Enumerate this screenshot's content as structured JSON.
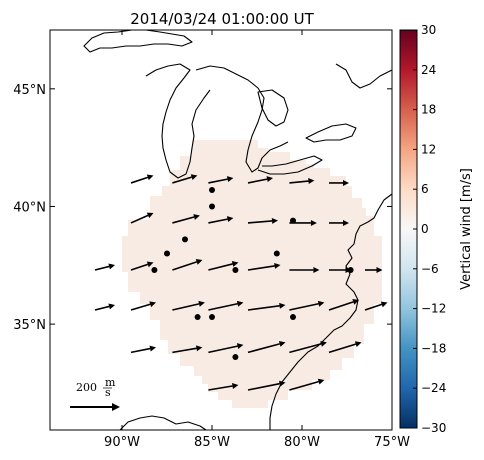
{
  "title": "2014/03/24 01:00:00 UT",
  "x_ticks": [
    "90°W",
    "85°W",
    "80°W",
    "75°W"
  ],
  "y_ticks": [
    "45°N",
    "40°N",
    "35°N"
  ],
  "colorbar": {
    "label": "Vertical wind [m/s]",
    "ticks": [
      "30",
      "24",
      "18",
      "12",
      "6",
      "0",
      "−6",
      "−12",
      "−18",
      "−24",
      "−30"
    ],
    "vmin": -30,
    "vmax": 30,
    "colormap": "RdBu_r",
    "colors": [
      "#053061",
      "#2166ac",
      "#4393c3",
      "#92c5de",
      "#d1e5f0",
      "#f7f7f7",
      "#fddbc7",
      "#f4a582",
      "#d6604d",
      "#b2182b",
      "#67001f"
    ]
  },
  "reference_arrow": {
    "value": 200,
    "label_num": "200",
    "label_unit_top": "m",
    "label_unit_bottom": "s"
  },
  "chart_data": {
    "type": "quiver-map",
    "field": "Vertical wind",
    "units": "m/s",
    "shaded_field_value": 2,
    "shaded_color": "#f8ebe4",
    "extent": {
      "lon": [
        -94,
        -75
      ],
      "lat": [
        30.5,
        47.5
      ]
    },
    "wind_vectors": [
      {
        "lon": -89.5,
        "lat": 41.0,
        "u": 90,
        "v": 30
      },
      {
        "lon": -87.2,
        "lat": 41.0,
        "u": 100,
        "v": 30
      },
      {
        "lon": -85.2,
        "lat": 41.0,
        "u": 100,
        "v": 20
      },
      {
        "lon": -83.0,
        "lat": 41.0,
        "u": 100,
        "v": 20
      },
      {
        "lon": -80.7,
        "lat": 41.0,
        "u": 100,
        "v": 10
      },
      {
        "lon": -78.5,
        "lat": 41.0,
        "u": 80,
        "v": 0
      },
      {
        "lon": -89.5,
        "lat": 39.3,
        "u": 90,
        "v": 40
      },
      {
        "lon": -87.2,
        "lat": 39.3,
        "u": 110,
        "v": 30
      },
      {
        "lon": -85.2,
        "lat": 39.3,
        "u": 100,
        "v": 20
      },
      {
        "lon": -83.0,
        "lat": 39.3,
        "u": 120,
        "v": 10
      },
      {
        "lon": -80.7,
        "lat": 39.3,
        "u": 110,
        "v": 0
      },
      {
        "lon": -78.5,
        "lat": 39.3,
        "u": 80,
        "v": 0
      },
      {
        "lon": -91.5,
        "lat": 37.3,
        "u": 80,
        "v": 20
      },
      {
        "lon": -89.5,
        "lat": 37.3,
        "u": 90,
        "v": 30
      },
      {
        "lon": -87.2,
        "lat": 37.3,
        "u": 120,
        "v": 40
      },
      {
        "lon": -85.2,
        "lat": 37.3,
        "u": 120,
        "v": 30
      },
      {
        "lon": -83.0,
        "lat": 37.3,
        "u": 130,
        "v": 20
      },
      {
        "lon": -80.7,
        "lat": 37.3,
        "u": 120,
        "v": 0
      },
      {
        "lon": -78.5,
        "lat": 37.3,
        "u": 90,
        "v": 0
      },
      {
        "lon": -76.5,
        "lat": 37.3,
        "u": 70,
        "v": 0
      },
      {
        "lon": -91.5,
        "lat": 35.6,
        "u": 80,
        "v": 20
      },
      {
        "lon": -89.5,
        "lat": 35.6,
        "u": 100,
        "v": 30
      },
      {
        "lon": -87.2,
        "lat": 35.6,
        "u": 130,
        "v": 30
      },
      {
        "lon": -85.2,
        "lat": 35.6,
        "u": 140,
        "v": 30
      },
      {
        "lon": -83.0,
        "lat": 35.6,
        "u": 150,
        "v": 20
      },
      {
        "lon": -80.7,
        "lat": 35.6,
        "u": 140,
        "v": 30
      },
      {
        "lon": -78.5,
        "lat": 35.6,
        "u": 120,
        "v": 40
      },
      {
        "lon": -76.5,
        "lat": 35.6,
        "u": 90,
        "v": 30
      },
      {
        "lon": -89.5,
        "lat": 33.8,
        "u": 100,
        "v": 20
      },
      {
        "lon": -87.2,
        "lat": 33.8,
        "u": 120,
        "v": 20
      },
      {
        "lon": -85.2,
        "lat": 33.8,
        "u": 140,
        "v": 30
      },
      {
        "lon": -83.0,
        "lat": 33.8,
        "u": 150,
        "v": 40
      },
      {
        "lon": -80.7,
        "lat": 33.8,
        "u": 150,
        "v": 40
      },
      {
        "lon": -78.5,
        "lat": 33.8,
        "u": 130,
        "v": 40
      },
      {
        "lon": -85.2,
        "lat": 32.2,
        "u": 120,
        "v": 20
      },
      {
        "lon": -83.0,
        "lat": 32.2,
        "u": 150,
        "v": 30
      },
      {
        "lon": -80.7,
        "lat": 32.2,
        "u": 140,
        "v": 40
      }
    ],
    "stations": [
      {
        "lon": -85.0,
        "lat": 40.7
      },
      {
        "lon": -85.0,
        "lat": 40.0
      },
      {
        "lon": -80.5,
        "lat": 39.4
      },
      {
        "lon": -86.5,
        "lat": 38.6
      },
      {
        "lon": -87.5,
        "lat": 38.0
      },
      {
        "lon": -81.4,
        "lat": 38.0
      },
      {
        "lon": -88.2,
        "lat": 37.3
      },
      {
        "lon": -83.7,
        "lat": 37.3
      },
      {
        "lon": -77.3,
        "lat": 37.3
      },
      {
        "lon": -85.8,
        "lat": 35.3
      },
      {
        "lon": -85.0,
        "lat": 35.3
      },
      {
        "lon": -80.5,
        "lat": 35.3
      },
      {
        "lon": -83.7,
        "lat": 33.6
      }
    ]
  }
}
